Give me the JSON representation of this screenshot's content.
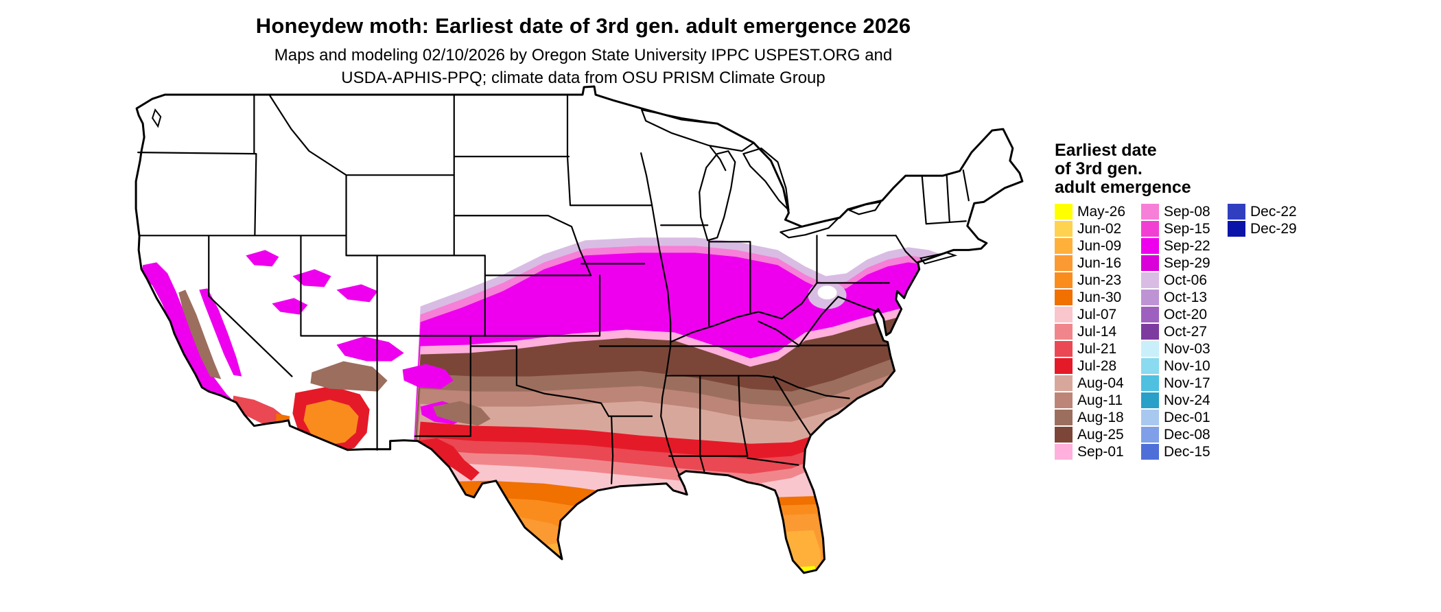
{
  "header": {
    "title": "Honeydew moth: Earliest date of 3rd gen. adult emergence 2026",
    "subtitle_line1": "Maps and modeling 02/10/2026 by Oregon State University IPPC USPEST.ORG and",
    "subtitle_line2": "USDA-APHIS-PPQ; climate data from OSU PRISM Climate Group"
  },
  "legend": {
    "title_lines": [
      "Earliest date",
      "of 3rd gen.",
      "adult emergence"
    ],
    "columns": [
      [
        {
          "label": "May-26",
          "color": "#FFFF00"
        },
        {
          "label": "Jun-02",
          "color": "#FFD24F"
        },
        {
          "label": "Jun-09",
          "color": "#FFB03A"
        },
        {
          "label": "Jun-16",
          "color": "#FB9A32"
        },
        {
          "label": "Jun-23",
          "color": "#FA8C1E"
        },
        {
          "label": "Jun-30",
          "color": "#F07000"
        },
        {
          "label": "Jul-07",
          "color": "#F9C6CE"
        },
        {
          "label": "Jul-14",
          "color": "#F0868B"
        },
        {
          "label": "Jul-21",
          "color": "#EA4853"
        },
        {
          "label": "Jul-28",
          "color": "#E51A28"
        },
        {
          "label": "Aug-04",
          "color": "#D8A79C"
        },
        {
          "label": "Aug-11",
          "color": "#BC8577"
        },
        {
          "label": "Aug-18",
          "color": "#9C6E5E"
        },
        {
          "label": "Aug-25",
          "color": "#7B4638"
        },
        {
          "label": "Sep-01",
          "color": "#FFB0DC"
        }
      ],
      [
        {
          "label": "Sep-08",
          "color": "#F67FD7"
        },
        {
          "label": "Sep-15",
          "color": "#F23FD3"
        },
        {
          "label": "Sep-22",
          "color": "#EE00EE"
        },
        {
          "label": "Sep-29",
          "color": "#D900D9"
        },
        {
          "label": "Oct-06",
          "color": "#D9BCE3"
        },
        {
          "label": "Oct-13",
          "color": "#BE93D4"
        },
        {
          "label": "Oct-20",
          "color": "#9E60BE"
        },
        {
          "label": "Oct-27",
          "color": "#7D3BA0"
        },
        {
          "label": "Nov-03",
          "color": "#C9EFFA"
        },
        {
          "label": "Nov-10",
          "color": "#8ADAF0"
        },
        {
          "label": "Nov-17",
          "color": "#4FC0E0"
        },
        {
          "label": "Nov-24",
          "color": "#28A0C8"
        },
        {
          "label": "Dec-01",
          "color": "#A9C8F0"
        },
        {
          "label": "Dec-08",
          "color": "#7F9FE8"
        },
        {
          "label": "Dec-15",
          "color": "#4F6FD8"
        }
      ],
      [
        {
          "label": "Dec-22",
          "color": "#2F3FBF"
        },
        {
          "label": "Dec-29",
          "color": "#0A14A8"
        }
      ]
    ]
  },
  "map": {
    "type": "choropleth",
    "area": "Contiguous United States",
    "no_data_color": "#FFFFFF",
    "outline_color": "#000000"
  }
}
